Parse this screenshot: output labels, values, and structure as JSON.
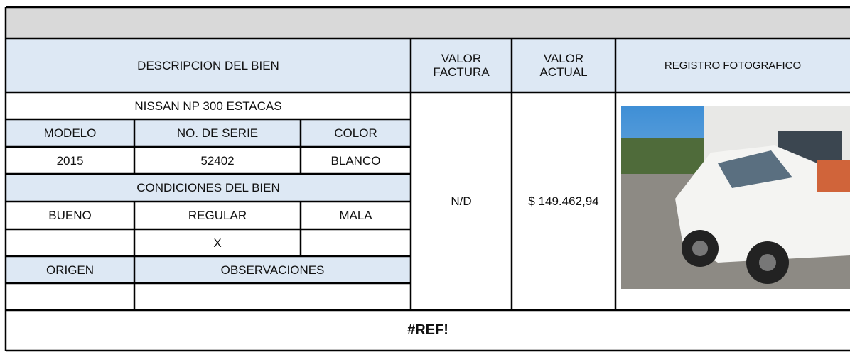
{
  "header": {
    "descripcion": "DESCRIPCION DEL BIEN",
    "valor_factura": [
      "VALOR",
      "FACTURA"
    ],
    "valor_actual": [
      "VALOR",
      "ACTUAL"
    ],
    "registro": "REGISTRO FOTOGRAFICO"
  },
  "bien": {
    "nombre": "NISSAN NP 300 ESTACAS",
    "labels": {
      "modelo": "MODELO",
      "serie": "NO. DE SERIE",
      "color": "COLOR"
    },
    "values": {
      "modelo": "2015",
      "serie": "52402",
      "color": "BLANCO"
    }
  },
  "condiciones": {
    "title": "CONDICIONES DEL BIEN",
    "options": [
      "BUENO",
      "REGULAR",
      "MALA"
    ],
    "regular_mark": "X"
  },
  "extra": {
    "origen": "ORIGEN",
    "observaciones": "OBSERVACIONES"
  },
  "valores": {
    "factura": "N/D",
    "actual": "$ 149.462,94"
  },
  "footer": "#REF!"
}
